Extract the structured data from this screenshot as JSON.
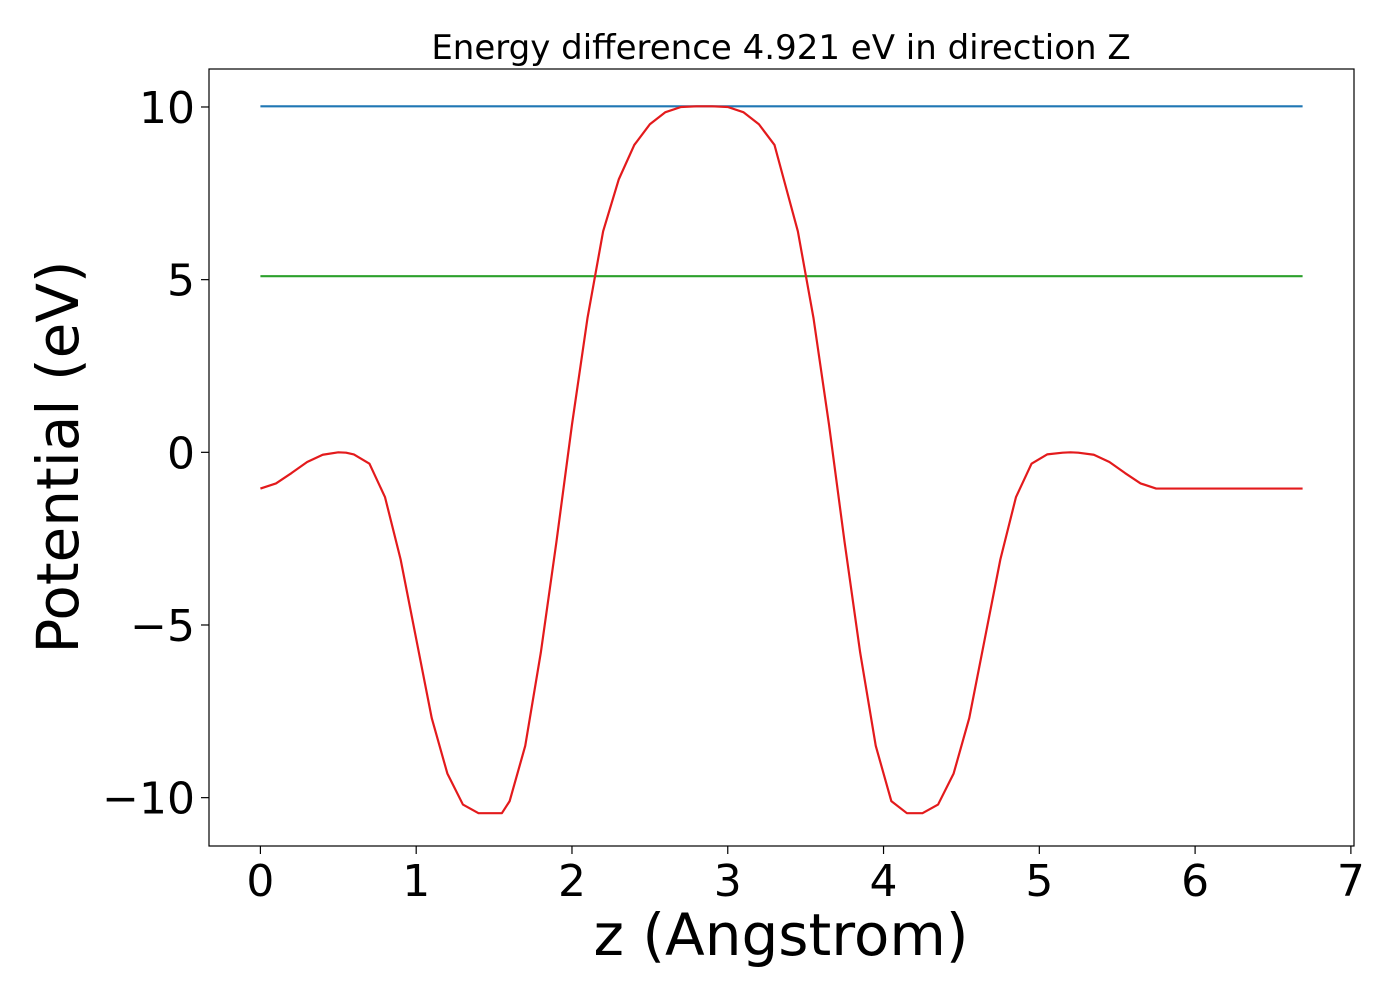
{
  "chart_data": {
    "type": "line",
    "title": "Energy difference 4.921 eV in direction Z",
    "xlabel": "z (Angstrom)",
    "ylabel": "Potential (eV)",
    "xlim": [
      -0.33,
      7.02
    ],
    "ylim": [
      -11.4,
      11.1
    ],
    "xticks": [
      0,
      1,
      2,
      3,
      4,
      5,
      6,
      7
    ],
    "xtick_labels": [
      "0",
      "1",
      "2",
      "3",
      "4",
      "5",
      "6",
      "7"
    ],
    "yticks": [
      10,
      5,
      0,
      -5,
      -10
    ],
    "ytick_labels": [
      "10",
      "5",
      "0",
      "−5",
      "−10"
    ],
    "grid": false,
    "series": [
      {
        "color": "#1f77b4",
        "x": [
          0,
          6.69
        ],
        "y": [
          10.02,
          10.02
        ]
      },
      {
        "color": "#2ca02c",
        "x": [
          0,
          6.69
        ],
        "y": [
          5.1,
          5.1
        ]
      },
      {
        "color": "#e31a1c",
        "x": [
          0,
          0.1,
          0.2,
          0.3,
          0.4,
          0.5,
          0.55,
          0.6,
          0.7,
          0.8,
          0.9,
          1.0,
          1.1,
          1.2,
          1.3,
          1.4,
          1.5,
          1.55,
          1.6,
          1.7,
          1.8,
          1.9,
          2.0,
          2.1,
          2.2,
          2.3,
          2.4,
          2.5,
          2.6,
          2.7,
          2.8,
          2.9,
          3.0,
          3.1,
          3.2,
          3.3,
          3.36,
          3.45,
          3.55,
          3.65,
          3.75,
          3.85,
          3.95,
          4.05,
          4.15,
          4.25,
          4.35,
          4.45,
          4.55,
          4.65,
          4.75,
          4.85,
          4.95,
          5.05,
          5.15,
          5.2,
          5.25,
          5.35,
          5.45,
          5.55,
          5.65,
          5.75,
          5.85,
          5.95,
          6.05,
          6.15,
          6.2,
          6.3,
          6.4,
          6.5,
          6.6,
          6.69
        ],
        "y": [
          -1.05,
          -0.9,
          -0.6,
          -0.28,
          -0.07,
          0.0,
          -0.01,
          -0.06,
          -0.33,
          -1.3,
          -3.1,
          -5.4,
          -7.7,
          -9.3,
          -10.2,
          -10.45,
          -10.45,
          -10.45,
          -10.1,
          -8.5,
          -5.8,
          -2.6,
          0.8,
          3.9,
          6.4,
          7.9,
          8.9,
          9.5,
          9.85,
          10.0,
          10.02,
          10.02,
          10.0,
          9.85,
          9.5,
          8.9,
          7.9,
          6.4,
          3.9,
          0.8,
          -2.6,
          -5.8,
          -8.5,
          -10.1,
          -10.45,
          -10.45,
          -10.2,
          -9.3,
          -7.7,
          -5.4,
          -3.1,
          -1.3,
          -0.33,
          -0.06,
          -0.01,
          0.0,
          -0.01,
          -0.07,
          -0.28,
          -0.6,
          -0.9,
          -1.05,
          -1.05,
          -1.05,
          -1.05,
          -1.05,
          -1.05,
          -1.05,
          -1.05,
          -1.05,
          -1.05,
          -1.05
        ]
      }
    ]
  }
}
